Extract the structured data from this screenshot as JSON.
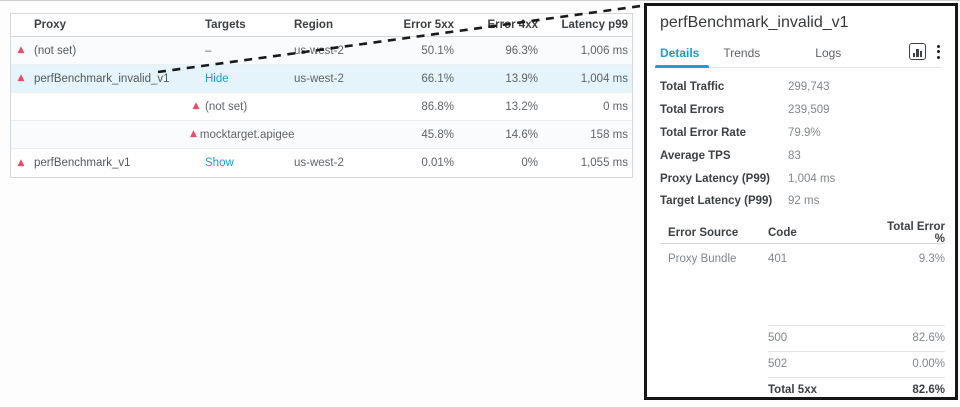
{
  "colors": {
    "accent_blue": "#1b9dd9",
    "warning_red": "#ee4b63",
    "highlight_row_bg": "#e5f3fb",
    "panel_border": "#161616"
  },
  "proxy_table": {
    "columns": [
      "Proxy",
      "Targets",
      "Region",
      "Error 5xx",
      "Error 4xx",
      "Latency p99"
    ],
    "rows": [
      {
        "proxy": "(not set)",
        "proxy_warning": true,
        "target": "–",
        "target_warning": false,
        "target_is_link": false,
        "region": "us-west-2",
        "error_5xx": "50.1%",
        "error_4xx": "96.3%",
        "latency_p99": "1,006 ms",
        "highlighted": false,
        "shaded": true
      },
      {
        "proxy": "perfBenchmark_invalid_v1",
        "proxy_warning": true,
        "target": "Hide",
        "target_warning": false,
        "target_is_link": true,
        "region": "us-west-2",
        "error_5xx": "66.1%",
        "error_4xx": "13.9%",
        "latency_p99": "1,004 ms",
        "highlighted": true,
        "shaded": false
      },
      {
        "proxy": "",
        "proxy_warning": false,
        "target": "(not set)",
        "target_warning": true,
        "target_is_link": false,
        "region": "",
        "error_5xx": "86.8%",
        "error_4xx": "13.2%",
        "latency_p99": "0 ms",
        "highlighted": false,
        "shaded": false
      },
      {
        "proxy": "",
        "proxy_warning": false,
        "target": "mocktarget.apigee.net",
        "target_warning": true,
        "target_is_link": false,
        "region": "",
        "error_5xx": "45.8%",
        "error_4xx": "14.6%",
        "latency_p99": "158 ms",
        "highlighted": false,
        "shaded": true
      },
      {
        "proxy": "perfBenchmark_v1",
        "proxy_warning": true,
        "target": "Show",
        "target_warning": false,
        "target_is_link": true,
        "region": "us-west-2",
        "error_5xx": "0.01%",
        "error_4xx": "0%",
        "latency_p99": "1,055 ms",
        "highlighted": false,
        "shaded": false
      }
    ],
    "warning_icon_glyph": "▲"
  },
  "detail_panel": {
    "title": "perfBenchmark_invalid_v1",
    "tabs": [
      {
        "label": "Details",
        "active": true
      },
      {
        "label": "Trends",
        "active": false
      },
      {
        "label": "Logs",
        "active": false
      }
    ],
    "icons": [
      "bar-chart-icon",
      "kebab-menu-icon"
    ],
    "stats": [
      {
        "label": "Total Traffic",
        "value": "299,743"
      },
      {
        "label": "Total Errors",
        "value": "239,509"
      },
      {
        "label": "Total Error Rate",
        "value": "79.9%"
      },
      {
        "label": "Average TPS",
        "value": "83"
      },
      {
        "label": "Proxy Latency (P99)",
        "value": "1,004 ms"
      },
      {
        "label": "Target Latency (P99)",
        "value": "92 ms"
      }
    ],
    "error_table": {
      "columns": [
        "Error Source",
        "Code",
        "Total Error %"
      ],
      "rows": [
        {
          "source": "Proxy Bundle",
          "code": "401",
          "pct": "9.3%"
        }
      ],
      "partial_rows": [
        {
          "code": "500",
          "pct": "82.6%"
        },
        {
          "code": "502",
          "pct": "0.00%"
        }
      ],
      "total_row": {
        "label": "Total 5xx",
        "pct": "82.6%"
      }
    }
  }
}
